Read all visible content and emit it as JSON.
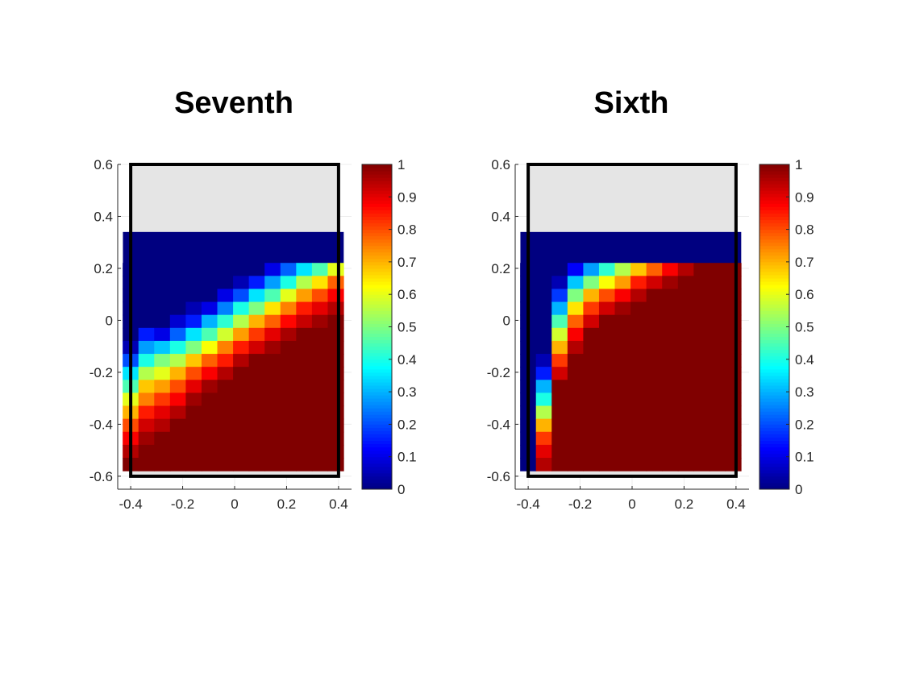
{
  "chart_data": [
    {
      "type": "heatmap",
      "title": "Seventh",
      "xlim": [
        -0.45,
        0.45
      ],
      "ylim": [
        -0.65,
        0.6
      ],
      "xticks": [
        "-0.4",
        "-0.2",
        "0",
        "0.2",
        "0.4"
      ],
      "yticks": [
        "0.6",
        "0.4",
        "0.2",
        "0",
        "-0.2",
        "-0.4",
        "-0.6"
      ],
      "colorbar": {
        "colormap": "jet",
        "range": [
          0,
          1
        ],
        "ticks": [
          "1",
          "0.9",
          "0.8",
          "0.7",
          "0.6",
          "0.5",
          "0.4",
          "0.3",
          "0.2",
          "0.1",
          "0"
        ]
      },
      "grid": true,
      "background_region": {
        "x": [
          -0.4,
          0.4
        ],
        "y": [
          -0.6,
          0.6
        ],
        "fill": "#e5e5e5",
        "border": "#000000"
      },
      "cells": {
        "x_range": [
          -0.43,
          0.42
        ],
        "y_range": [
          -0.58,
          0.34
        ],
        "top_blue_band": {
          "y": [
            0.22,
            0.34
          ],
          "value": 0.0
        },
        "column_values": [
          [
            0.0,
            0.0,
            0.0,
            0.0,
            0.0,
            0.0,
            0.05,
            0.2,
            0.35,
            0.45,
            0.6,
            0.7,
            0.8,
            0.88,
            0.95,
            1.0
          ],
          [
            0.0,
            0.0,
            0.0,
            0.0,
            0.0,
            0.15,
            0.28,
            0.4,
            0.55,
            0.68,
            0.75,
            0.85,
            0.92,
            0.97,
            1.0,
            1.0
          ],
          [
            0.0,
            0.0,
            0.0,
            0.0,
            0.0,
            0.1,
            0.32,
            0.5,
            0.6,
            0.72,
            0.82,
            0.9,
            0.95,
            1.0,
            1.0,
            1.0
          ],
          [
            0.0,
            0.0,
            0.0,
            0.0,
            0.08,
            0.22,
            0.4,
            0.55,
            0.7,
            0.8,
            0.88,
            0.95,
            1.0,
            1.0,
            1.0,
            1.0
          ],
          [
            0.0,
            0.0,
            0.0,
            0.05,
            0.15,
            0.35,
            0.5,
            0.68,
            0.8,
            0.9,
            0.97,
            1.0,
            1.0,
            1.0,
            1.0,
            1.0
          ],
          [
            0.0,
            0.0,
            0.0,
            0.1,
            0.3,
            0.45,
            0.62,
            0.78,
            0.88,
            0.97,
            1.0,
            1.0,
            1.0,
            1.0,
            1.0,
            1.0
          ],
          [
            0.0,
            0.0,
            0.1,
            0.25,
            0.42,
            0.58,
            0.75,
            0.85,
            0.95,
            1.0,
            1.0,
            1.0,
            1.0,
            1.0,
            1.0,
            1.0
          ],
          [
            0.0,
            0.05,
            0.2,
            0.4,
            0.55,
            0.72,
            0.85,
            0.95,
            1.0,
            1.0,
            1.0,
            1.0,
            1.0,
            1.0,
            1.0,
            1.0
          ],
          [
            0.0,
            0.15,
            0.35,
            0.5,
            0.7,
            0.82,
            0.92,
            1.0,
            1.0,
            1.0,
            1.0,
            1.0,
            1.0,
            1.0,
            1.0,
            1.0
          ],
          [
            0.1,
            0.28,
            0.45,
            0.65,
            0.78,
            0.9,
            0.97,
            1.0,
            1.0,
            1.0,
            1.0,
            1.0,
            1.0,
            1.0,
            1.0,
            1.0
          ],
          [
            0.22,
            0.4,
            0.6,
            0.75,
            0.87,
            0.96,
            1.0,
            1.0,
            1.0,
            1.0,
            1.0,
            1.0,
            1.0,
            1.0,
            1.0,
            1.0
          ],
          [
            0.35,
            0.55,
            0.72,
            0.85,
            0.93,
            1.0,
            1.0,
            1.0,
            1.0,
            1.0,
            1.0,
            1.0,
            1.0,
            1.0,
            1.0,
            1.0
          ],
          [
            0.45,
            0.65,
            0.8,
            0.9,
            0.97,
            1.0,
            1.0,
            1.0,
            1.0,
            1.0,
            1.0,
            1.0,
            1.0,
            1.0,
            1.0,
            1.0
          ],
          [
            0.6,
            0.78,
            0.88,
            0.95,
            1.0,
            1.0,
            1.0,
            1.0,
            1.0,
            1.0,
            1.0,
            1.0,
            1.0,
            1.0,
            1.0,
            1.0
          ]
        ]
      }
    },
    {
      "type": "heatmap",
      "title": "Sixth",
      "xlim": [
        -0.45,
        0.45
      ],
      "ylim": [
        -0.65,
        0.6
      ],
      "xticks": [
        "-0.4",
        "-0.2",
        "0",
        "0.2",
        "0.4"
      ],
      "yticks": [
        "0.6",
        "0.4",
        "0.2",
        "0",
        "-0.2",
        "-0.4",
        "-0.6"
      ],
      "colorbar": {
        "colormap": "jet",
        "range": [
          0,
          1
        ],
        "ticks": [
          "1",
          "0.9",
          "0.8",
          "0.7",
          "0.6",
          "0.5",
          "0.4",
          "0.3",
          "0.2",
          "0.1",
          "0"
        ]
      },
      "grid": true,
      "background_region": {
        "x": [
          -0.4,
          0.4
        ],
        "y": [
          -0.6,
          0.6
        ],
        "fill": "#e5e5e5",
        "border": "#000000"
      },
      "cells": {
        "x_range": [
          -0.43,
          0.42
        ],
        "y_range": [
          -0.58,
          0.34
        ],
        "top_blue_band": {
          "y": [
            0.22,
            0.34
          ],
          "value": 0.0
        },
        "column_values": [
          [
            0.0,
            0.0,
            0.0,
            0.0,
            0.0,
            0.0,
            0.0,
            0.0,
            0.0,
            0.0,
            0.0,
            0.0,
            0.0,
            0.0,
            0.0,
            0.0
          ],
          [
            0.0,
            0.0,
            0.0,
            0.0,
            0.0,
            0.0,
            0.0,
            0.05,
            0.15,
            0.3,
            0.4,
            0.55,
            0.7,
            0.82,
            0.9,
            0.95
          ],
          [
            0.0,
            0.05,
            0.18,
            0.3,
            0.45,
            0.58,
            0.7,
            0.82,
            0.92,
            1.0,
            1.0,
            1.0,
            1.0,
            1.0,
            1.0,
            1.0
          ],
          [
            0.12,
            0.32,
            0.5,
            0.65,
            0.78,
            0.88,
            0.95,
            1.0,
            1.0,
            1.0,
            1.0,
            1.0,
            1.0,
            1.0,
            1.0,
            1.0
          ],
          [
            0.28,
            0.5,
            0.7,
            0.82,
            0.92,
            1.0,
            1.0,
            1.0,
            1.0,
            1.0,
            1.0,
            1.0,
            1.0,
            1.0,
            1.0,
            1.0
          ],
          [
            0.42,
            0.62,
            0.8,
            0.92,
            1.0,
            1.0,
            1.0,
            1.0,
            1.0,
            1.0,
            1.0,
            1.0,
            1.0,
            1.0,
            1.0,
            1.0
          ],
          [
            0.55,
            0.72,
            0.88,
            0.97,
            1.0,
            1.0,
            1.0,
            1.0,
            1.0,
            1.0,
            1.0,
            1.0,
            1.0,
            1.0,
            1.0,
            1.0
          ],
          [
            0.68,
            0.85,
            0.95,
            1.0,
            1.0,
            1.0,
            1.0,
            1.0,
            1.0,
            1.0,
            1.0,
            1.0,
            1.0,
            1.0,
            1.0,
            1.0
          ],
          [
            0.78,
            0.92,
            1.0,
            1.0,
            1.0,
            1.0,
            1.0,
            1.0,
            1.0,
            1.0,
            1.0,
            1.0,
            1.0,
            1.0,
            1.0,
            1.0
          ],
          [
            0.88,
            0.97,
            1.0,
            1.0,
            1.0,
            1.0,
            1.0,
            1.0,
            1.0,
            1.0,
            1.0,
            1.0,
            1.0,
            1.0,
            1.0,
            1.0
          ],
          [
            0.95,
            1.0,
            1.0,
            1.0,
            1.0,
            1.0,
            1.0,
            1.0,
            1.0,
            1.0,
            1.0,
            1.0,
            1.0,
            1.0,
            1.0,
            1.0
          ],
          [
            1.0,
            1.0,
            1.0,
            1.0,
            1.0,
            1.0,
            1.0,
            1.0,
            1.0,
            1.0,
            1.0,
            1.0,
            1.0,
            1.0,
            1.0,
            1.0
          ],
          [
            1.0,
            1.0,
            1.0,
            1.0,
            1.0,
            1.0,
            1.0,
            1.0,
            1.0,
            1.0,
            1.0,
            1.0,
            1.0,
            1.0,
            1.0,
            1.0
          ],
          [
            1.0,
            1.0,
            1.0,
            1.0,
            1.0,
            1.0,
            1.0,
            1.0,
            1.0,
            1.0,
            1.0,
            1.0,
            1.0,
            1.0,
            1.0,
            1.0
          ]
        ]
      }
    }
  ]
}
